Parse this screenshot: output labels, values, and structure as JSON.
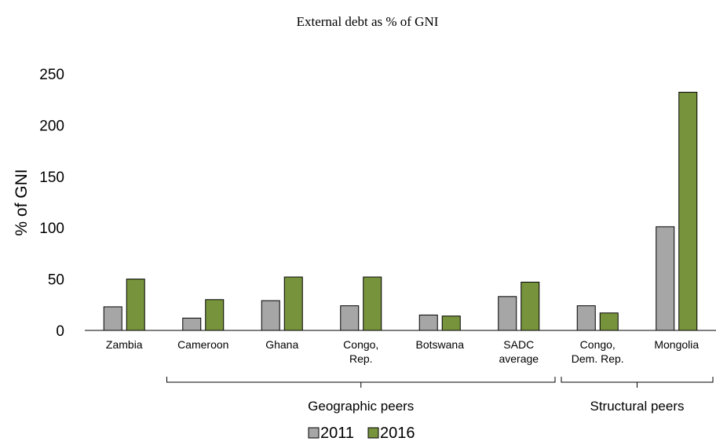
{
  "chart_data": {
    "type": "bar",
    "title": "External debt as % of GNI",
    "ylabel": "% of GNI",
    "xlabel": "",
    "ylim": [
      0,
      250
    ],
    "yticks": [
      0,
      50,
      100,
      150,
      200,
      250
    ],
    "grid": false,
    "legend_position": "bottom",
    "categories": [
      [
        "Zambia"
      ],
      [
        "Cameroon"
      ],
      [
        "Ghana"
      ],
      [
        "Congo,",
        "Rep."
      ],
      [
        "Botswana"
      ],
      [
        "SADC",
        "average"
      ],
      [
        "Congo,",
        "Dem. Rep."
      ],
      [
        "Mongolia"
      ]
    ],
    "series": [
      {
        "name": "2011",
        "color": "#a6a6a6",
        "values": [
          23,
          12,
          29,
          24,
          15,
          33,
          24,
          101
        ]
      },
      {
        "name": "2016",
        "color": "#77933c",
        "values": [
          50,
          30,
          52,
          52,
          14,
          47,
          17,
          232
        ]
      }
    ],
    "groups": [
      {
        "label": "Geographic peers",
        "from": 1,
        "to": 5
      },
      {
        "label": "Structural peers",
        "from": 6,
        "to": 7
      }
    ]
  }
}
